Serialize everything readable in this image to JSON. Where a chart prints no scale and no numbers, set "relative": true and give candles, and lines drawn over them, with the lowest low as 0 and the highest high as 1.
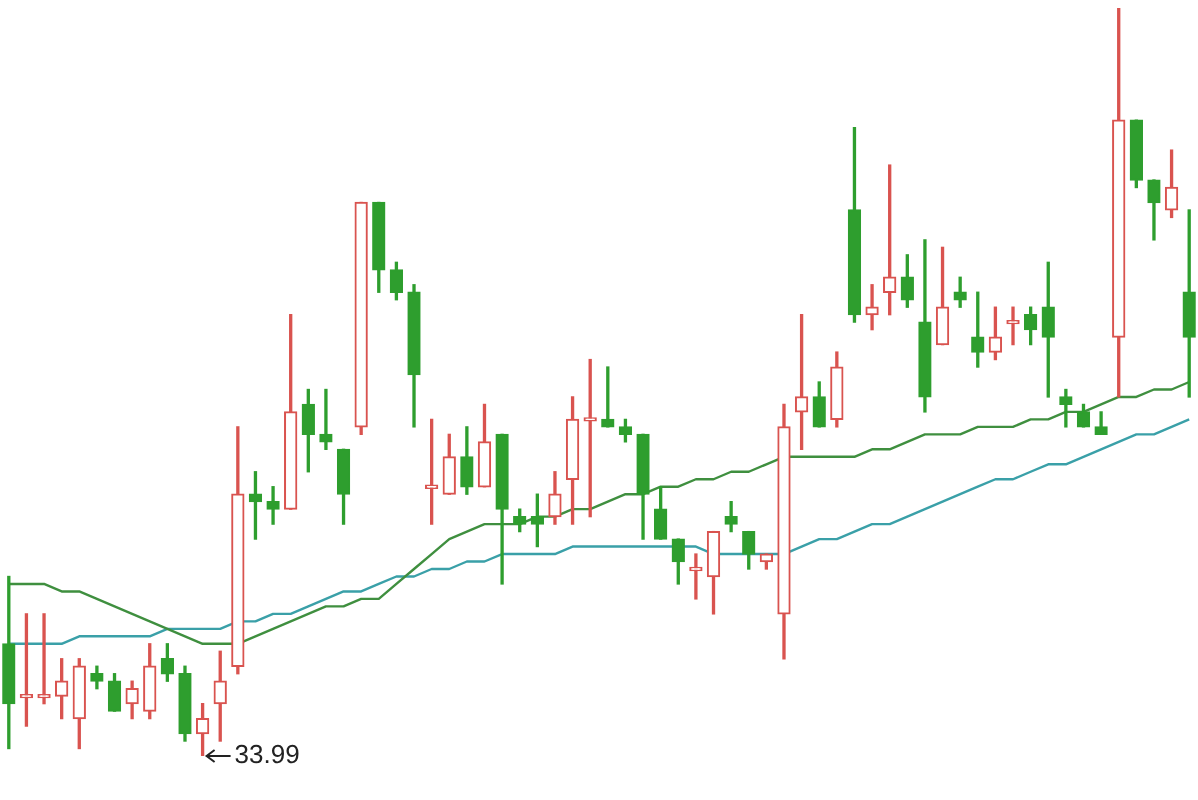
{
  "chart_data": {
    "type": "candlestick",
    "relative": true,
    "categories": [
      null,
      null,
      null,
      null,
      null,
      null,
      null,
      null,
      null,
      null,
      null,
      null,
      null,
      null,
      null,
      null,
      null,
      null,
      null,
      null,
      null,
      null,
      null,
      null,
      null,
      null,
      null,
      null,
      null,
      null,
      null,
      null,
      null,
      null,
      null,
      null,
      null,
      null,
      null,
      null,
      null,
      null,
      null,
      null,
      null,
      null,
      null,
      null,
      null,
      null,
      null,
      null,
      null,
      null,
      null,
      null,
      null,
      null,
      null,
      null,
      null,
      null,
      null,
      null,
      null,
      null,
      null,
      null
    ],
    "ohlc": [
      [
        0.15,
        0.24,
        0.01,
        0.07
      ],
      [
        0.08,
        0.19,
        0.04,
        0.08
      ],
      [
        0.08,
        0.19,
        0.07,
        0.08
      ],
      [
        0.08,
        0.13,
        0.05,
        0.1
      ],
      [
        0.05,
        0.13,
        0.01,
        0.12
      ],
      [
        0.11,
        0.12,
        0.09,
        0.1
      ],
      [
        0.1,
        0.11,
        0.06,
        0.06
      ],
      [
        0.07,
        0.1,
        0.05,
        0.09
      ],
      [
        0.06,
        0.15,
        0.05,
        0.12
      ],
      [
        0.13,
        0.15,
        0.1,
        0.11
      ],
      [
        0.11,
        0.12,
        0.02,
        0.03
      ],
      [
        0.03,
        0.07,
        0,
        0.05
      ],
      [
        0.07,
        0.14,
        0.02,
        0.1
      ],
      [
        0.12,
        0.44,
        0.11,
        0.35
      ],
      [
        0.35,
        0.38,
        0.29,
        0.34
      ],
      [
        0.34,
        0.36,
        0.31,
        0.33
      ],
      [
        0.33,
        0.59,
        0.33,
        0.46
      ],
      [
        0.47,
        0.49,
        0.38,
        0.43
      ],
      [
        0.43,
        0.49,
        0.41,
        0.42
      ],
      [
        0.41,
        0.41,
        0.31,
        0.35
      ],
      [
        0.44,
        0.74,
        0.43,
        0.74
      ],
      [
        0.74,
        0.74,
        0.62,
        0.65
      ],
      [
        0.65,
        0.66,
        0.61,
        0.62
      ],
      [
        0.62,
        0.63,
        0.44,
        0.51
      ],
      [
        0.36,
        0.45,
        0.31,
        0.36
      ],
      [
        0.35,
        0.43,
        0.35,
        0.4
      ],
      [
        0.4,
        0.44,
        0.35,
        0.36
      ],
      [
        0.36,
        0.47,
        0.36,
        0.42
      ],
      [
        0.43,
        0.43,
        0.23,
        0.33
      ],
      [
        0.32,
        0.33,
        0.3,
        0.31
      ],
      [
        0.32,
        0.35,
        0.28,
        0.31
      ],
      [
        0.32,
        0.38,
        0.31,
        0.35
      ],
      [
        0.37,
        0.48,
        0.31,
        0.45
      ],
      [
        0.45,
        0.53,
        0.32,
        0.45
      ],
      [
        0.45,
        0.52,
        0.44,
        0.44
      ],
      [
        0.44,
        0.45,
        0.42,
        0.43
      ],
      [
        0.43,
        0.43,
        0.29,
        0.35
      ],
      [
        0.33,
        0.36,
        0.29,
        0.29
      ],
      [
        0.29,
        0.29,
        0.23,
        0.26
      ],
      [
        0.25,
        0.27,
        0.21,
        0.25
      ],
      [
        0.24,
        0.3,
        0.19,
        0.3
      ],
      [
        0.32,
        0.34,
        0.3,
        0.31
      ],
      [
        0.3,
        0.3,
        0.25,
        0.27
      ],
      [
        0.26,
        0.27,
        0.25,
        0.27
      ],
      [
        0.19,
        0.47,
        0.13,
        0.44
      ],
      [
        0.46,
        0.59,
        0.41,
        0.48
      ],
      [
        0.48,
        0.5,
        0.44,
        0.44
      ],
      [
        0.45,
        0.54,
        0.44,
        0.52
      ],
      [
        0.73,
        0.84,
        0.58,
        0.59
      ],
      [
        0.59,
        0.63,
        0.57,
        0.6
      ],
      [
        0.62,
        0.79,
        0.59,
        0.64
      ],
      [
        0.64,
        0.67,
        0.6,
        0.61
      ],
      [
        0.58,
        0.69,
        0.46,
        0.48
      ],
      [
        0.55,
        0.68,
        0.55,
        0.6
      ],
      [
        0.62,
        0.64,
        0.6,
        0.61
      ],
      [
        0.56,
        0.62,
        0.52,
        0.54
      ],
      [
        0.54,
        0.6,
        0.53,
        0.56
      ],
      [
        0.58,
        0.6,
        0.55,
        0.58
      ],
      [
        0.59,
        0.6,
        0.55,
        0.57
      ],
      [
        0.6,
        0.66,
        0.48,
        0.56
      ],
      [
        0.48,
        0.49,
        0.44,
        0.47
      ],
      [
        0.46,
        0.47,
        0.44,
        0.44
      ],
      [
        0.44,
        0.46,
        0.43,
        0.43
      ],
      [
        0.56,
        1.0,
        0.48,
        0.85
      ],
      [
        0.85,
        0.85,
        0.76,
        0.77
      ],
      [
        0.77,
        0.77,
        0.69,
        0.74
      ],
      [
        0.73,
        0.81,
        0.72,
        0.76
      ],
      [
        0.62,
        0.73,
        0.48,
        0.56
      ]
    ],
    "series": [
      {
        "type": "line",
        "color": "#3f8f3f",
        "values": [
          0.23,
          0.23,
          0.23,
          0.22,
          0.22,
          0.21,
          0.2,
          0.19,
          0.18,
          0.17,
          0.16,
          0.15,
          0.15,
          0.15,
          0.16,
          0.17,
          0.18,
          0.19,
          0.2,
          0.2,
          0.21,
          0.21,
          0.23,
          0.25,
          0.27,
          0.29,
          0.3,
          0.31,
          0.31,
          0.31,
          0.32,
          0.32,
          0.33,
          0.33,
          0.34,
          0.35,
          0.35,
          0.36,
          0.36,
          0.37,
          0.37,
          0.38,
          0.38,
          0.39,
          0.4,
          0.4,
          0.4,
          0.4,
          0.4,
          0.41,
          0.41,
          0.42,
          0.43,
          0.43,
          0.43,
          0.44,
          0.44,
          0.44,
          0.45,
          0.45,
          0.46,
          0.46,
          0.47,
          0.48,
          0.48,
          0.49,
          0.49,
          0.5
        ]
      },
      {
        "type": "line",
        "color": "#3aa0a8",
        "values": [
          0.15,
          0.15,
          0.15,
          0.15,
          0.16,
          0.16,
          0.16,
          0.16,
          0.16,
          0.17,
          0.17,
          0.17,
          0.17,
          0.18,
          0.18,
          0.19,
          0.19,
          0.2,
          0.21,
          0.22,
          0.22,
          0.23,
          0.24,
          0.24,
          0.25,
          0.25,
          0.26,
          0.26,
          0.27,
          0.27,
          0.27,
          0.27,
          0.28,
          0.28,
          0.28,
          0.28,
          0.28,
          0.28,
          0.28,
          0.28,
          0.27,
          0.27,
          0.27,
          0.27,
          0.27,
          0.28,
          0.29,
          0.29,
          0.3,
          0.31,
          0.31,
          0.32,
          0.33,
          0.34,
          0.35,
          0.36,
          0.37,
          0.37,
          0.38,
          0.39,
          0.39,
          0.4,
          0.41,
          0.42,
          0.43,
          0.43,
          0.44,
          0.45
        ]
      }
    ],
    "annotations": [
      "33.99"
    ]
  }
}
